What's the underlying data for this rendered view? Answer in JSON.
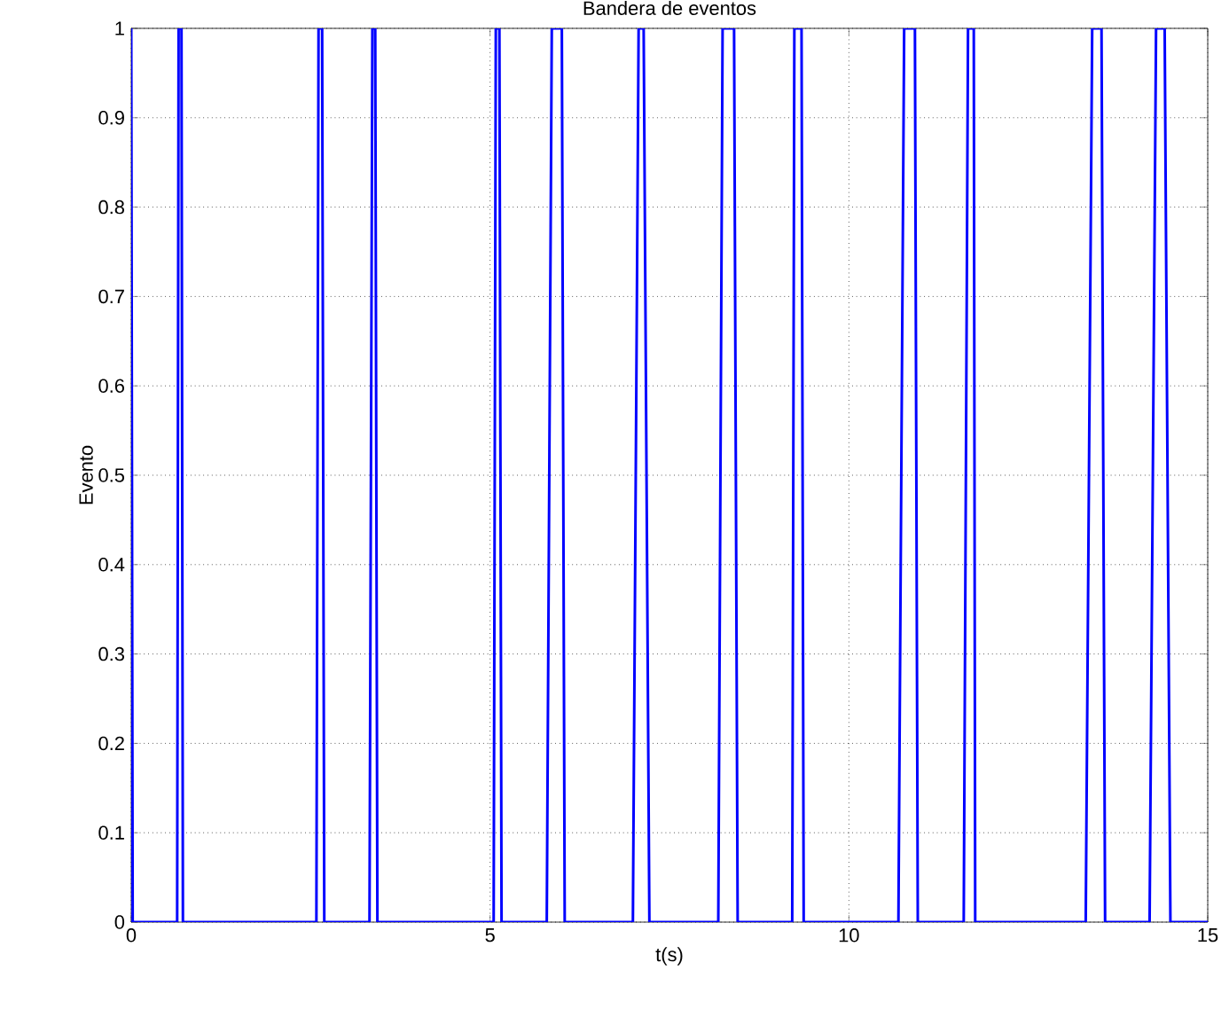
{
  "chart_data": {
    "type": "line",
    "title": "Bandera de eventos",
    "xlabel": "t(s)",
    "ylabel": "Evento",
    "x": [
      0,
      0.02,
      0.64,
      0.66,
      0.7,
      0.72,
      2.58,
      2.61,
      2.66,
      2.69,
      3.32,
      3.36,
      3.4,
      3.43,
      5.05,
      5.08,
      5.13,
      5.16,
      5.79,
      5.86,
      6.0,
      6.04,
      6.99,
      7.07,
      7.14,
      7.22,
      8.18,
      8.24,
      8.4,
      8.45,
      9.21,
      9.24,
      9.34,
      9.37,
      10.69,
      10.77,
      10.92,
      10.96,
      11.6,
      11.66,
      11.74,
      11.76,
      13.3,
      13.39,
      13.52,
      13.57,
      14.19,
      14.28,
      14.4,
      14.48,
      15
    ],
    "series": [
      {
        "color": "#0000ff",
        "values": [
          1,
          0,
          0,
          1,
          1,
          0,
          0,
          1,
          1,
          0,
          0,
          1,
          1,
          0,
          0,
          1,
          1,
          0,
          0,
          1,
          1,
          0,
          0,
          1,
          1,
          0,
          0,
          1,
          1,
          0,
          0,
          1,
          1,
          0,
          0,
          1,
          1,
          0,
          0,
          1,
          1,
          0,
          0,
          1,
          1,
          0,
          0,
          1,
          1,
          0,
          0
        ]
      }
    ],
    "xlim": [
      0,
      15
    ],
    "ylim": [
      0,
      1
    ],
    "xticks": [
      0,
      5,
      10,
      15
    ],
    "yticks": [
      0,
      0.1,
      0.2,
      0.3,
      0.4,
      0.5,
      0.6,
      0.7,
      0.8,
      0.9,
      1
    ],
    "grid": true,
    "marker": "none",
    "line_style": "solid"
  }
}
